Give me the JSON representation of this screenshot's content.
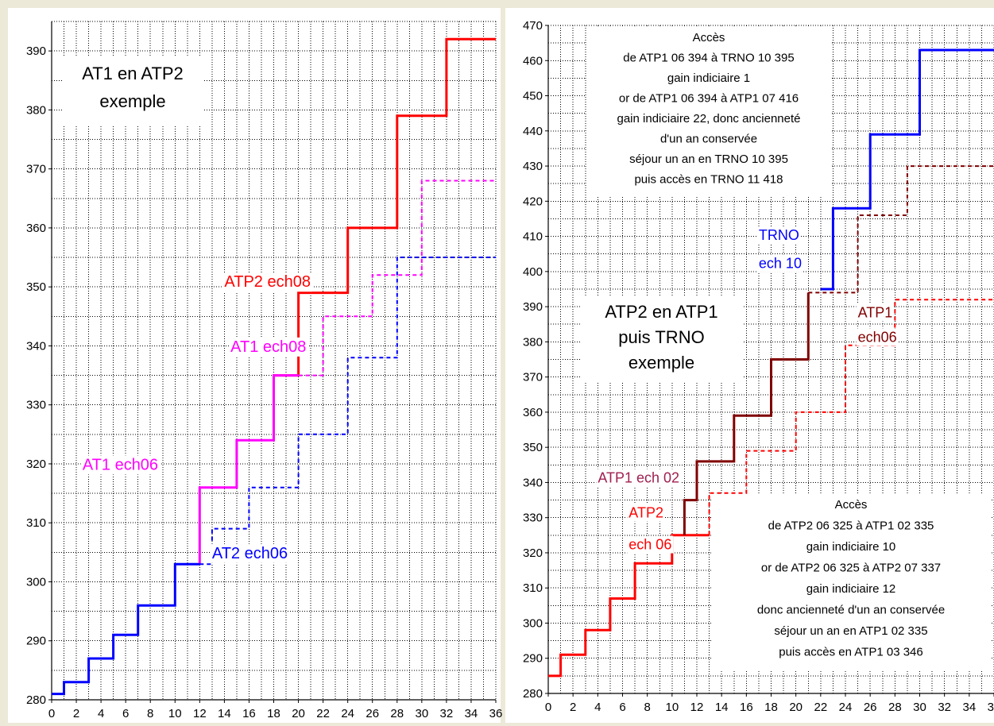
{
  "chart_data": [
    {
      "type": "line",
      "step": true,
      "xlim": [
        0,
        36
      ],
      "ylim": [
        280,
        395
      ],
      "xticks": [
        "0",
        "2",
        "4",
        "6",
        "8",
        "10",
        "12",
        "14",
        "16",
        "18",
        "20",
        "22",
        "24",
        "26",
        "28",
        "30",
        "32",
        "34",
        "36"
      ],
      "yticks": [
        "280",
        "290",
        "300",
        "310",
        "320",
        "330",
        "340",
        "350",
        "360",
        "370",
        "380",
        "390"
      ],
      "grid": true,
      "colors": {
        "background": "#ffffff",
        "grid": "#000000",
        "red": "#ff0000",
        "magenta": "#ff00ff",
        "blue": "#0000ff"
      },
      "series": [
        {
          "name": "ATP2 ech08",
          "color": "#ff0000",
          "style": "solid",
          "x": [
            20,
            24,
            28,
            32,
            36
          ],
          "y": [
            349,
            360,
            379,
            392,
            392
          ],
          "start": [
            18,
            335
          ]
        },
        {
          "name": "AT1 ech08",
          "color": "#ff00ff",
          "style": "solid",
          "x": [
            12,
            15,
            18,
            20
          ],
          "y": [
            316,
            324,
            335,
            335
          ],
          "start": [
            12,
            303
          ]
        },
        {
          "name": "AT1 ech08 dashed",
          "color": "#ff00ff",
          "style": "dashed",
          "x": [
            22,
            26,
            30,
            36
          ],
          "y": [
            345,
            352,
            368,
            368
          ],
          "start": [
            20,
            335
          ]
        },
        {
          "name": "AT2 ech06",
          "color": "#0000ff",
          "style": "solid",
          "x": [
            0,
            1,
            3,
            5,
            7,
            10,
            12
          ],
          "y": [
            281,
            283,
            287,
            291,
            296,
            303,
            303
          ]
        },
        {
          "name": "AT2 ech06 dashed",
          "color": "#0000ff",
          "style": "dashed",
          "x": [
            13,
            16,
            20,
            24,
            28,
            36
          ],
          "y": [
            309,
            316,
            325,
            338,
            355,
            355
          ],
          "start": [
            12,
            303
          ]
        }
      ],
      "labels": [
        {
          "text": "ATP2 ech08",
          "color": "#ff0000",
          "x": 14,
          "y": 350
        },
        {
          "text": "AT1 ech08",
          "color": "#ff00ff",
          "x": 14.5,
          "y": 339
        },
        {
          "text": "AT1 ech06",
          "color": "#ff00ff",
          "x": 2.5,
          "y": 319
        },
        {
          "text": "AT2 ech06",
          "color": "#0000ff",
          "x": 13,
          "y": 304
        }
      ],
      "title_lines": [
        "AT1 en ATP2",
        "exemple"
      ]
    },
    {
      "type": "line",
      "step": true,
      "xlim": [
        0,
        36
      ],
      "ylim": [
        280,
        470
      ],
      "xticks": [
        "0",
        "2",
        "4",
        "6",
        "8",
        "10",
        "12",
        "14",
        "16",
        "18",
        "20",
        "22",
        "24",
        "26",
        "28",
        "30",
        "32",
        "34",
        "36"
      ],
      "yticks": [
        "280",
        "290",
        "300",
        "310",
        "320",
        "330",
        "340",
        "350",
        "360",
        "370",
        "380",
        "390",
        "400",
        "410",
        "420",
        "430",
        "440",
        "450",
        "460",
        "470"
      ],
      "grid": true,
      "colors": {
        "background": "#ffffff",
        "grid": "#000000",
        "red": "#ff0000",
        "darkred": "#800000",
        "blue": "#0000ff"
      },
      "series": [
        {
          "name": "ATP2 ech 06",
          "color": "#ff0000",
          "style": "solid",
          "x": [
            0,
            1,
            3,
            5,
            7,
            10,
            13
          ],
          "y": [
            285,
            291,
            298,
            307,
            317,
            325,
            325
          ]
        },
        {
          "name": "ATP2 ech 06 dashed",
          "color": "#ff0000",
          "style": "dashed",
          "x": [
            13,
            16,
            20,
            24,
            28,
            36
          ],
          "y": [
            337,
            349,
            360,
            379,
            392,
            392
          ],
          "start": [
            13,
            325
          ]
        },
        {
          "name": "ATP1 ech 02",
          "color": "#800000",
          "style": "solid",
          "x": [
            11,
            12,
            15,
            18,
            21
          ],
          "y": [
            335,
            346,
            359,
            375,
            394
          ],
          "start": [
            11,
            325
          ]
        },
        {
          "name": "ATP1 ech06",
          "color": "#800000",
          "style": "dashed",
          "x": [
            21,
            25,
            29,
            36
          ],
          "y": [
            394,
            416,
            430,
            430
          ],
          "start": [
            21,
            394
          ]
        },
        {
          "name": "TRNO ech 10",
          "color": "#0000ff",
          "style": "solid",
          "x": [
            22,
            23,
            26,
            30,
            36
          ],
          "y": [
            395,
            418,
            439,
            463,
            463
          ],
          "start": [
            22,
            395
          ]
        }
      ],
      "labels": [
        {
          "text": "TRNO",
          "color": "#0000ff",
          "x": 17,
          "y": 409
        },
        {
          "text": "ech 10",
          "color": "#0000ff",
          "x": 17,
          "y": 401
        },
        {
          "text": "ATP1",
          "color": "#800000",
          "x": 25,
          "y": 387
        },
        {
          "text": "ech06",
          "color": "#800000",
          "x": 25,
          "y": 380
        },
        {
          "text": "ATP1 ech 02",
          "color": "#a02050",
          "x": 4,
          "y": 340
        },
        {
          "text": "ATP2",
          "color": "#ff0000",
          "x": 6.5,
          "y": 330
        },
        {
          "text": "ech 06",
          "color": "#ff0000",
          "x": 6.5,
          "y": 321
        }
      ],
      "title_lines": [
        "ATP2 en ATP1",
        "puis TRNO",
        "exemple"
      ],
      "annotation_top": [
        "Accès",
        "de ATP1 06 394 à TRNO 10 395",
        "gain indiciaire 1",
        "or de ATP1 06 394 à ATP1 07 416",
        "gain indiciaire 22, donc ancienneté",
        "d'un an conservée",
        "séjour un an en TRNO 10 395",
        "puis accès en TRNO 11 418"
      ],
      "annotation_bottom": [
        "Accès",
        "de ATP2 06 325  à ATP1 02 335",
        "gain indiciaire 10",
        "or de ATP2 06 325 à ATP2 07 337",
        "gain indiciaire 12",
        "donc ancienneté d'un an conservée",
        "séjour un an en ATP1 02 335",
        "puis accès en ATP1 03 346"
      ]
    }
  ]
}
